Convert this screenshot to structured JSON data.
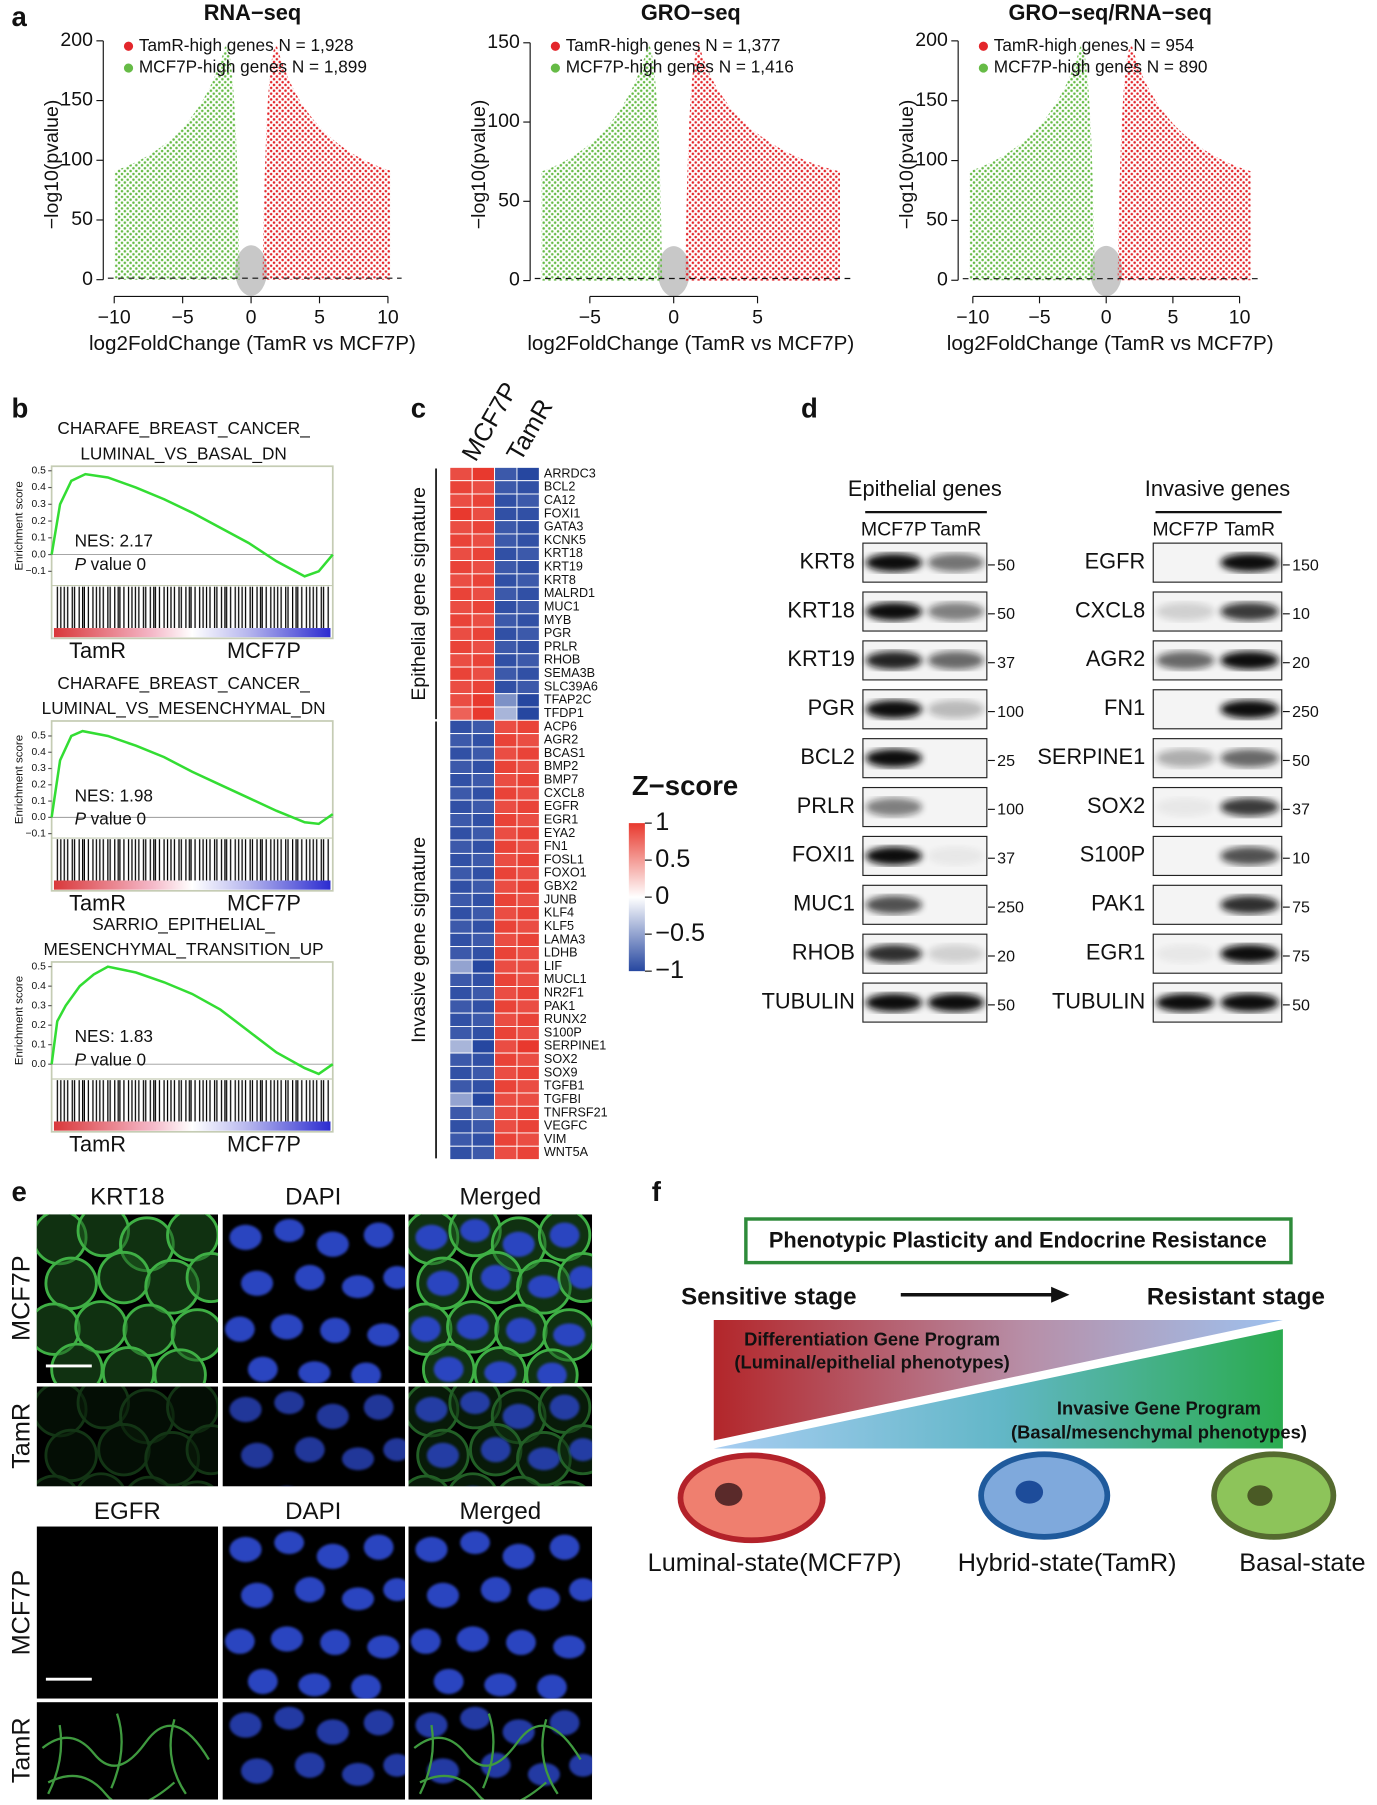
{
  "panel_labels": [
    "a",
    "b",
    "c",
    "d",
    "e",
    "f"
  ],
  "chart_data": [
    {
      "type": "scatter",
      "title": "RNA−seq",
      "x_label": "log2FoldChange (TamR vs MCF7P)",
      "y_label": "−log10(pvalue)",
      "xlim": [
        -10.8,
        11
      ],
      "ylim": [
        -14,
        207
      ],
      "xticks": [
        {
          "value": -10,
          "label": "−10"
        },
        {
          "value": -5,
          "label": "−5"
        },
        0,
        5,
        10
      ],
      "yticks": [
        0,
        50,
        100,
        150,
        200
      ],
      "threshold": 1.3,
      "series": [
        {
          "name": "TamR-high genes N = 1,928",
          "color": "#e3262b"
        },
        {
          "name": "MCF7P-high genes N = 1,899",
          "color": "#66bb46"
        }
      ]
    },
    {
      "type": "scatter",
      "title": "GRO−seq",
      "x_label": "log2FoldChange (TamR vs MCF7P)",
      "y_label": "−log10(pvalue)",
      "xlim": [
        -8.56,
        10.6
      ],
      "ylim": [
        -10,
        156.5
      ],
      "xticks": [
        {
          "value": -5,
          "label": "−5"
        },
        0,
        5
      ],
      "yticks": [
        0,
        50,
        100,
        150
      ],
      "threshold": 1.3,
      "series": [
        {
          "name": "TamR-high genes N = 1,377",
          "color": "#e3262b"
        },
        {
          "name": "MCF7P-high genes N = 1,416",
          "color": "#66bb46"
        }
      ]
    },
    {
      "type": "scatter",
      "title": "GRO−seq/RNA−seq",
      "x_label": "log2FoldChange (TamR vs MCF7P)",
      "y_label": "−log10(pvalue)",
      "xlim": [
        -11.1,
        11.7
      ],
      "ylim": [
        -13.5,
        207
      ],
      "xticks": [
        {
          "value": -10,
          "label": "−10"
        },
        {
          "value": -5,
          "label": "−5"
        },
        0,
        5,
        10
      ],
      "yticks": [
        0,
        50,
        100,
        150,
        200
      ],
      "threshold": 1.3,
      "series": [
        {
          "name": "TamR-high genes N = 954",
          "color": "#e3262b"
        },
        {
          "name": "MCF7P-high genes N = 890",
          "color": "#66bb46"
        }
      ]
    },
    {
      "type": "line",
      "title": [
        "CHARAFE_BREAST_CANCER_",
        "LUMINAL_VS_BASAL_DN"
      ],
      "y_label": "Enrichment score",
      "nes": "NES: 2.17",
      "p_symbol": "P",
      "p_text": "value 0",
      "left_label": "TamR",
      "right_label": "MCF7P",
      "xlim": [
        0,
        1
      ],
      "ylim": [
        -0.185,
        0.527
      ],
      "yticks": [
        0.5,
        0.4,
        0.3,
        0.2,
        0.1,
        {
          "value": 0,
          "label": "0.0"
        },
        {
          "value": -0.1,
          "label": "−0.1"
        }
      ],
      "color": "#33dd33",
      "x": [
        0,
        0.03,
        0.07,
        0.12,
        0.2,
        0.3,
        0.4,
        0.5,
        0.6,
        0.7,
        0.8,
        0.9,
        0.95,
        1
      ],
      "values": [
        0,
        0.3,
        0.44,
        0.48,
        0.46,
        0.4,
        0.33,
        0.25,
        0.16,
        0.07,
        -0.04,
        -0.13,
        -0.1,
        0
      ]
    },
    {
      "type": "line",
      "title": [
        "CHARAFE_BREAST_CANCER_",
        "LUMINAL_VS_MESENCHYMAL_DN"
      ],
      "y_label": "Enrichment score",
      "nes": "NES: 1.98",
      "p_symbol": "P",
      "p_text": "value 0",
      "left_label": "TamR",
      "right_label": "MCF7P",
      "xlim": [
        0,
        1
      ],
      "ylim": [
        -0.127,
        0.592
      ],
      "yticks": [
        0.5,
        0.4,
        0.3,
        0.2,
        0.1,
        {
          "value": 0,
          "label": "0.0"
        },
        {
          "value": -0.1,
          "label": "−0.1"
        }
      ],
      "color": "#33dd33",
      "x": [
        0,
        0.03,
        0.07,
        0.11,
        0.2,
        0.3,
        0.4,
        0.5,
        0.6,
        0.7,
        0.8,
        0.9,
        0.95,
        1
      ],
      "values": [
        0,
        0.35,
        0.5,
        0.53,
        0.5,
        0.44,
        0.37,
        0.28,
        0.2,
        0.12,
        0.04,
        -0.03,
        -0.04,
        0.02
      ]
    },
    {
      "type": "line",
      "title": [
        "SARRIO_EPITHELIAL_",
        "MESENCHYMAL_TRANSITION_UP"
      ],
      "y_label": "Enrichment score",
      "nes": "NES: 1.83",
      "p_symbol": "P",
      "p_text": "value 0",
      "left_label": "TamR",
      "right_label": "MCF7P",
      "xlim": [
        0,
        1
      ],
      "ylim": [
        -0.076,
        0.524
      ],
      "yticks": [
        0.5,
        0.4,
        0.3,
        0.2,
        0.1,
        {
          "value": 0,
          "label": "0.0"
        }
      ],
      "color": "#33dd33",
      "x": [
        0,
        0.02,
        0.05,
        0.1,
        0.15,
        0.2,
        0.3,
        0.4,
        0.5,
        0.6,
        0.7,
        0.8,
        0.9,
        0.95,
        1
      ],
      "values": [
        0,
        0.22,
        0.3,
        0.4,
        0.46,
        0.5,
        0.47,
        0.42,
        0.36,
        0.28,
        0.17,
        0.06,
        -0.02,
        -0.05,
        0
      ]
    },
    {
      "type": "heatmap",
      "columns": [
        "MCF7P",
        "TamR"
      ],
      "colorbar_title": "Z−score",
      "zlim": [
        -1,
        1
      ],
      "zticks": [
        1,
        0.5,
        0,
        {
          "value": -0.5,
          "label": "−0.5"
        },
        {
          "value": -1,
          "label": "−1"
        }
      ],
      "colors": [
        "#2647a0",
        "#ffffff",
        "#e8392e"
      ],
      "row_groups": [
        {
          "name": "Epithelial gene signature",
          "rows": [
            "ARRDC3",
            "BCL2",
            "CA12",
            "FOXI1",
            "GATA3",
            "KCNK5",
            "KRT18",
            "KRT19",
            "KRT8",
            "MALRD1",
            "MUC1",
            "MYB",
            "PGR",
            "PRLR",
            "RHOB",
            "SEMA3B",
            "SLC39A6",
            "TFAP2C",
            "TFDP1"
          ],
          "values": [
            [
              0.9,
              1,
              -0.9,
              -1
            ],
            [
              0.95,
              0.9,
              -0.9,
              -0.95
            ],
            [
              0.9,
              0.95,
              -0.95,
              -0.9
            ],
            [
              1,
              0.9,
              -0.95,
              -0.95
            ],
            [
              0.9,
              0.95,
              -0.9,
              -0.95
            ],
            [
              0.95,
              0.9,
              -0.9,
              -0.95
            ],
            [
              0.9,
              0.95,
              -0.95,
              -0.9
            ],
            [
              0.95,
              0.9,
              -0.9,
              -0.95
            ],
            [
              0.9,
              0.95,
              -0.95,
              -0.9
            ],
            [
              0.95,
              0.9,
              -0.9,
              -0.95
            ],
            [
              0.9,
              0.95,
              -0.95,
              -0.9
            ],
            [
              0.95,
              0.9,
              -0.9,
              -0.95
            ],
            [
              0.9,
              0.95,
              -0.95,
              -0.9
            ],
            [
              0.95,
              0.9,
              -0.9,
              -0.95
            ],
            [
              0.9,
              0.95,
              -0.95,
              -0.9
            ],
            [
              0.95,
              0.9,
              -0.9,
              -0.95
            ],
            [
              0.9,
              0.95,
              -0.95,
              -0.9
            ],
            [
              0.9,
              1,
              -0.6,
              -1
            ],
            [
              0.8,
              1,
              -0.4,
              -1
            ]
          ]
        },
        {
          "name": "Invasive gene signature",
          "rows": [
            "ACP6",
            "AGR2",
            "BCAS1",
            "BMP2",
            "BMP7",
            "CXCL8",
            "EGFR",
            "EGR1",
            "EYA2",
            "FN1",
            "FOSL1",
            "FOXO1",
            "GBX2",
            "JUNB",
            "KLF4",
            "KLF5",
            "LAMA3",
            "LDHB",
            "LIF",
            "MUCL1",
            "NR2F1",
            "PAK1",
            "RUNX2",
            "S100P",
            "SERPINE1",
            "SOX2",
            "SOX9",
            "TGFB1",
            "TGFBI",
            "TNFRSF21",
            "VEGFC",
            "VIM",
            "WNT5A"
          ],
          "values": [
            [
              -0.95,
              -0.9,
              0.9,
              0.95
            ],
            [
              -0.9,
              -0.95,
              0.95,
              0.9
            ],
            [
              -0.95,
              -0.9,
              0.9,
              0.95
            ],
            [
              -0.9,
              -0.95,
              0.95,
              0.9
            ],
            [
              -0.95,
              -0.9,
              0.9,
              0.95
            ],
            [
              -0.9,
              -0.95,
              0.95,
              0.9
            ],
            [
              -0.95,
              -0.9,
              0.9,
              0.95
            ],
            [
              -0.9,
              -0.95,
              0.95,
              0.9
            ],
            [
              -0.95,
              -0.9,
              0.9,
              0.95
            ],
            [
              -0.9,
              -0.95,
              0.95,
              0.9
            ],
            [
              -0.95,
              -0.9,
              0.9,
              0.95
            ],
            [
              -0.9,
              -0.95,
              0.95,
              0.9
            ],
            [
              -0.95,
              -0.9,
              0.9,
              0.95
            ],
            [
              -0.9,
              -0.95,
              0.95,
              0.9
            ],
            [
              -0.95,
              -0.9,
              0.9,
              0.95
            ],
            [
              -0.9,
              -0.95,
              0.95,
              0.9
            ],
            [
              -0.95,
              -0.9,
              0.9,
              0.95
            ],
            [
              -0.9,
              -0.95,
              0.95,
              0.9
            ],
            [
              -0.5,
              -1,
              0.9,
              0.9
            ],
            [
              -0.9,
              -0.95,
              0.95,
              0.9
            ],
            [
              -0.95,
              -0.9,
              0.9,
              0.95
            ],
            [
              -0.9,
              -0.95,
              0.95,
              0.9
            ],
            [
              -0.95,
              -0.9,
              0.9,
              0.95
            ],
            [
              -0.9,
              -0.95,
              0.95,
              0.9
            ],
            [
              -0.4,
              -1,
              0.9,
              1
            ],
            [
              -0.9,
              -0.95,
              0.95,
              0.9
            ],
            [
              -0.95,
              -0.9,
              0.9,
              0.95
            ],
            [
              -0.9,
              -0.95,
              0.95,
              0.9
            ],
            [
              -0.5,
              -1,
              0.9,
              0.9
            ],
            [
              -0.9,
              -0.8,
              0.9,
              0.95
            ],
            [
              -0.95,
              -0.9,
              0.9,
              0.95
            ],
            [
              -0.9,
              -0.95,
              0.95,
              0.9
            ],
            [
              -0.95,
              -0.9,
              0.9,
              0.95
            ]
          ]
        }
      ]
    }
  ],
  "western_blot": {
    "panels": [
      {
        "title": "Epithelial genes",
        "lanes": [
          "MCF7P",
          "TamR"
        ],
        "rows": [
          {
            "protein": "KRT8",
            "marker": 50,
            "intensity": [
              1,
              0.55
            ]
          },
          {
            "protein": "KRT18",
            "marker": 50,
            "intensity": [
              1,
              0.5
            ]
          },
          {
            "protein": "KRT19",
            "marker": 37,
            "intensity": [
              0.9,
              0.6
            ]
          },
          {
            "protein": "PGR",
            "marker": 100,
            "intensity": [
              1,
              0.25
            ]
          },
          {
            "protein": "BCL2",
            "marker": 25,
            "intensity": [
              1,
              0
            ]
          },
          {
            "protein": "PRLR",
            "marker": 100,
            "intensity": [
              0.5,
              0
            ]
          },
          {
            "protein": "FOXI1",
            "marker": 37,
            "intensity": [
              1,
              0.05
            ]
          },
          {
            "protein": "MUC1",
            "marker": 250,
            "intensity": [
              0.7,
              0
            ]
          },
          {
            "protein": "RHOB",
            "marker": 20,
            "intensity": [
              0.85,
              0.15
            ]
          },
          {
            "protein": "TUBULIN",
            "marker": 50,
            "intensity": [
              1,
              1
            ]
          }
        ]
      },
      {
        "title": "Invasive genes",
        "lanes": [
          "MCF7P",
          "TamR"
        ],
        "rows": [
          {
            "protein": "EGFR",
            "marker": 150,
            "intensity": [
              0,
              1
            ]
          },
          {
            "protein": "CXCL8",
            "marker": 10,
            "intensity": [
              0.15,
              0.8
            ]
          },
          {
            "protein": "AGR2",
            "marker": 20,
            "intensity": [
              0.6,
              1
            ]
          },
          {
            "protein": "FN1",
            "marker": 250,
            "intensity": [
              0,
              1
            ]
          },
          {
            "protein": "SERPINE1",
            "marker": 50,
            "intensity": [
              0.3,
              0.6
            ]
          },
          {
            "protein": "SOX2",
            "marker": 37,
            "intensity": [
              0.05,
              0.8
            ]
          },
          {
            "protein": "S100P",
            "marker": 10,
            "intensity": [
              0,
              0.7
            ]
          },
          {
            "protein": "PAK1",
            "marker": 75,
            "intensity": [
              0,
              0.85
            ]
          },
          {
            "protein": "EGR1",
            "marker": 75,
            "intensity": [
              0.05,
              1
            ]
          },
          {
            "protein": "TUBULIN",
            "marker": 50,
            "intensity": [
              1,
              1
            ]
          }
        ]
      }
    ]
  },
  "microscopy": {
    "top": {
      "columns": [
        "KRT18",
        "DAPI",
        "Merged"
      ],
      "rows": [
        "MCF7P",
        "TamR"
      ]
    },
    "bottom": {
      "columns": [
        "EGFR",
        "DAPI",
        "Merged"
      ],
      "rows": [
        "MCF7P",
        "TamR"
      ]
    }
  },
  "diagram": {
    "title": "Phenotypic  Plasticity  and Endocrine Resistance",
    "stages": [
      "Sensitive stage",
      "Resistant stage"
    ],
    "programs": [
      {
        "name": "Differentiation Gene Program",
        "detail": "(Luminal/epithelial phenotypes)"
      },
      {
        "name": "Invasive Gene Program",
        "detail": "(Basal/mesenchymal phenotypes)"
      }
    ],
    "states": [
      "Luminal-state(MCF7P)",
      "Hybrid-state(TamR)",
      "Basal-state"
    ]
  }
}
